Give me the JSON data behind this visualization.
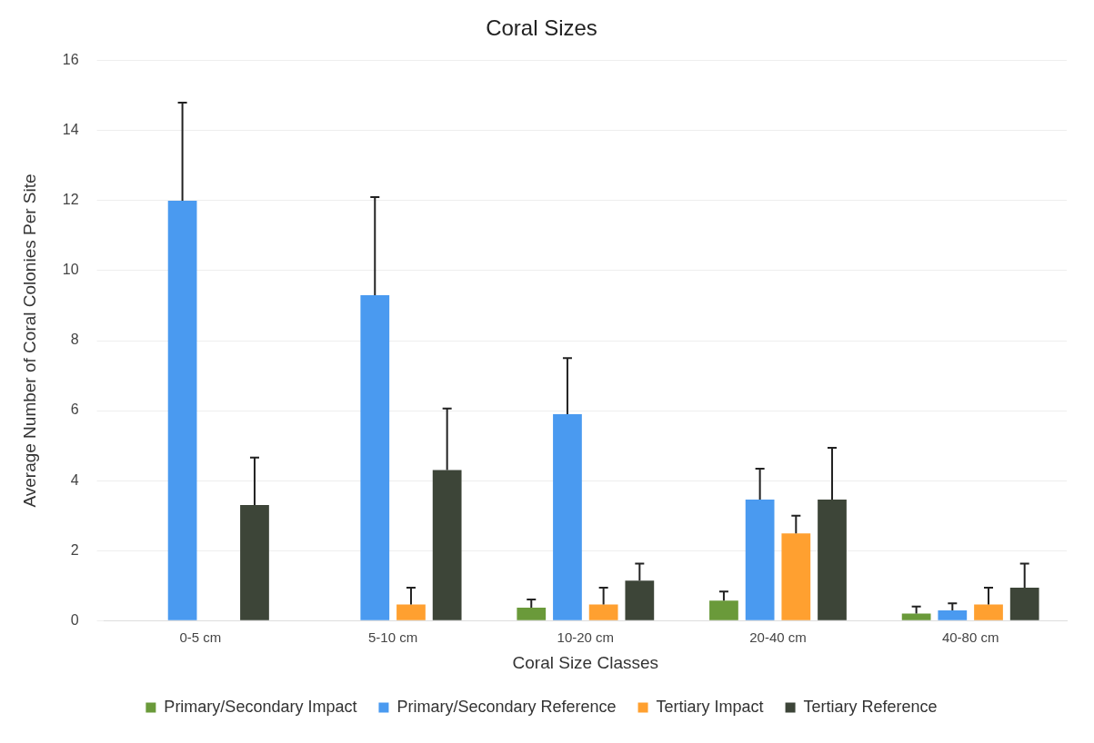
{
  "chart_data": {
    "type": "bar",
    "title": "Coral Sizes",
    "xlabel": "Coral Size Classes",
    "ylabel": "Average Number of Coral Colonies Per Site",
    "categories": [
      "0-5 cm",
      "5-10 cm",
      "10-20 cm",
      "20-40 cm",
      "40-80 cm"
    ],
    "series": [
      {
        "name": "Primary/Secondary Impact",
        "color": "#6a9a3a",
        "values": [
          null,
          null,
          0.37,
          0.57,
          0.2
        ],
        "errors": [
          null,
          null,
          [
            0.37,
            0.6
          ],
          [
            0.57,
            0.83
          ],
          [
            0.2,
            0.4
          ]
        ]
      },
      {
        "name": "Primary/Secondary Reference",
        "color": "#4a9af0",
        "values": [
          12,
          9.3,
          5.9,
          3.46,
          0.29
        ],
        "errors": [
          [
            12,
            14.8
          ],
          [
            9.3,
            12.1
          ],
          [
            5.9,
            7.5
          ],
          [
            3.46,
            4.34
          ],
          [
            0.29,
            0.49
          ]
        ]
      },
      {
        "name": "Tertiary Impact",
        "color": "#ffa030",
        "values": [
          null,
          0.46,
          0.46,
          2.49,
          0.46
        ],
        "errors": [
          null,
          [
            0.46,
            0.94
          ],
          [
            0.46,
            0.94
          ],
          [
            2.49,
            3.0
          ],
          [
            0.46,
            0.94
          ]
        ]
      },
      {
        "name": "Tertiary Reference",
        "color": "#3d4538",
        "values": [
          3.3,
          4.3,
          1.14,
          3.46,
          0.94
        ],
        "errors": [
          [
            3.3,
            4.66
          ],
          [
            4.3,
            6.06
          ],
          [
            1.14,
            1.63
          ],
          [
            3.46,
            4.94
          ],
          [
            0.94,
            1.63
          ]
        ]
      }
    ],
    "ylim": [
      0,
      16
    ],
    "yticks": [
      0,
      2,
      4,
      6,
      8,
      10,
      12,
      14,
      16
    ],
    "grid": "y",
    "legend": "bottom"
  }
}
